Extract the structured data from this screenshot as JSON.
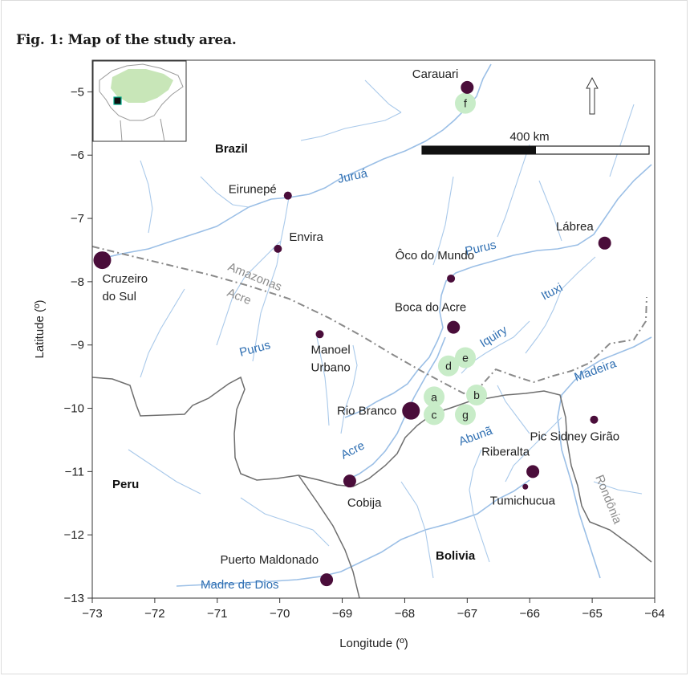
{
  "figure": {
    "title": "Fig. 1: Map of the study area."
  },
  "colors": {
    "city": "#4a0d3a",
    "site": "#c8ecc8",
    "river": "#a9c9ea",
    "river_label": "#2f6fb2",
    "country_border": "#6e6e6e",
    "state_border": "#8a8a8a",
    "inset_land": "#c8e6b8"
  },
  "axes": {
    "x_title": "Longitude (º)",
    "y_title": "Latitude (º)",
    "xlim": [
      -73,
      -64
    ],
    "ylim": [
      -13,
      -4.5
    ],
    "x_ticks": [
      {
        "value": -73,
        "label": "−73"
      },
      {
        "value": -72,
        "label": "−72"
      },
      {
        "value": -71,
        "label": "−71"
      },
      {
        "value": -70,
        "label": "−70"
      },
      {
        "value": -69,
        "label": "−69"
      },
      {
        "value": -68,
        "label": "−68"
      },
      {
        "value": -67,
        "label": "−67"
      },
      {
        "value": -66,
        "label": "−66"
      },
      {
        "value": -65,
        "label": "−65"
      },
      {
        "value": -64,
        "label": "−64"
      }
    ],
    "y_ticks": [
      {
        "value": -5,
        "label": "−5"
      },
      {
        "value": -6,
        "label": "−6"
      },
      {
        "value": -7,
        "label": "−7"
      },
      {
        "value": -8,
        "label": "−8"
      },
      {
        "value": -9,
        "label": "−9"
      },
      {
        "value": -10,
        "label": "−10"
      },
      {
        "value": -11,
        "label": "−11"
      },
      {
        "value": -12,
        "label": "−12"
      },
      {
        "value": -13,
        "label": "−13"
      }
    ]
  },
  "cities": [
    {
      "name": "Carauari",
      "lon": -67.0,
      "lat": -4.93,
      "size": "medium"
    },
    {
      "name": "Eirunepé",
      "lon": -69.87,
      "lat": -6.64,
      "size": "small"
    },
    {
      "name": "Envira",
      "lon": -70.03,
      "lat": -7.48,
      "size": "small"
    },
    {
      "name": "Cruzeiro do Sul",
      "lon": -72.84,
      "lat": -7.66,
      "size": "large"
    },
    {
      "name": "Lábrea",
      "lon": -64.8,
      "lat": -7.39,
      "size": "medium"
    },
    {
      "name": "Ôco do Mundo",
      "lon": -67.26,
      "lat": -7.95,
      "size": "small"
    },
    {
      "name": "Boca do Acre",
      "lon": -67.22,
      "lat": -8.72,
      "size": "medium"
    },
    {
      "name": "Manoel Urbano",
      "lon": -69.36,
      "lat": -8.83,
      "size": "small"
    },
    {
      "name": "Rio Branco",
      "lon": -67.9,
      "lat": -10.04,
      "size": "large"
    },
    {
      "name": "Pic Sidney Girão",
      "lon": -64.97,
      "lat": -10.18,
      "size": "small"
    },
    {
      "name": "Riberalta",
      "lon": -65.95,
      "lat": -11.0,
      "size": "medium"
    },
    {
      "name": "Tumichucua",
      "lon": -66.07,
      "lat": -11.24,
      "size": "tiny"
    },
    {
      "name": "Cobija",
      "lon": -68.88,
      "lat": -11.15,
      "size": "medium"
    },
    {
      "name": "Puerto Maldonado",
      "lon": -69.25,
      "lat": -12.71,
      "size": "medium"
    }
  ],
  "sites": [
    {
      "label": "a",
      "lon": -67.53,
      "lat": -9.82
    },
    {
      "label": "b",
      "lon": -66.85,
      "lat": -9.79
    },
    {
      "label": "c",
      "lon": -67.53,
      "lat": -10.1
    },
    {
      "label": "d",
      "lon": -67.3,
      "lat": -9.33
    },
    {
      "label": "e",
      "lon": -67.03,
      "lat": -9.2
    },
    {
      "label": "f",
      "lon": -67.03,
      "lat": -5.18
    },
    {
      "label": "g",
      "lon": -67.03,
      "lat": -10.1
    }
  ],
  "countries": [
    "Brazil",
    "Peru",
    "Bolivia"
  ],
  "rivers": [
    "Juruá",
    "Purus",
    "Purus",
    "Ituxi",
    "Iquiry",
    "Madeira",
    "Abunã",
    "Acre",
    "Madre de Dios"
  ],
  "states": [
    "Amazonas",
    "Acre",
    "Rondônia"
  ],
  "scale_bar": {
    "label": "400 km"
  },
  "north_arrow": {
    "direction": "north"
  }
}
